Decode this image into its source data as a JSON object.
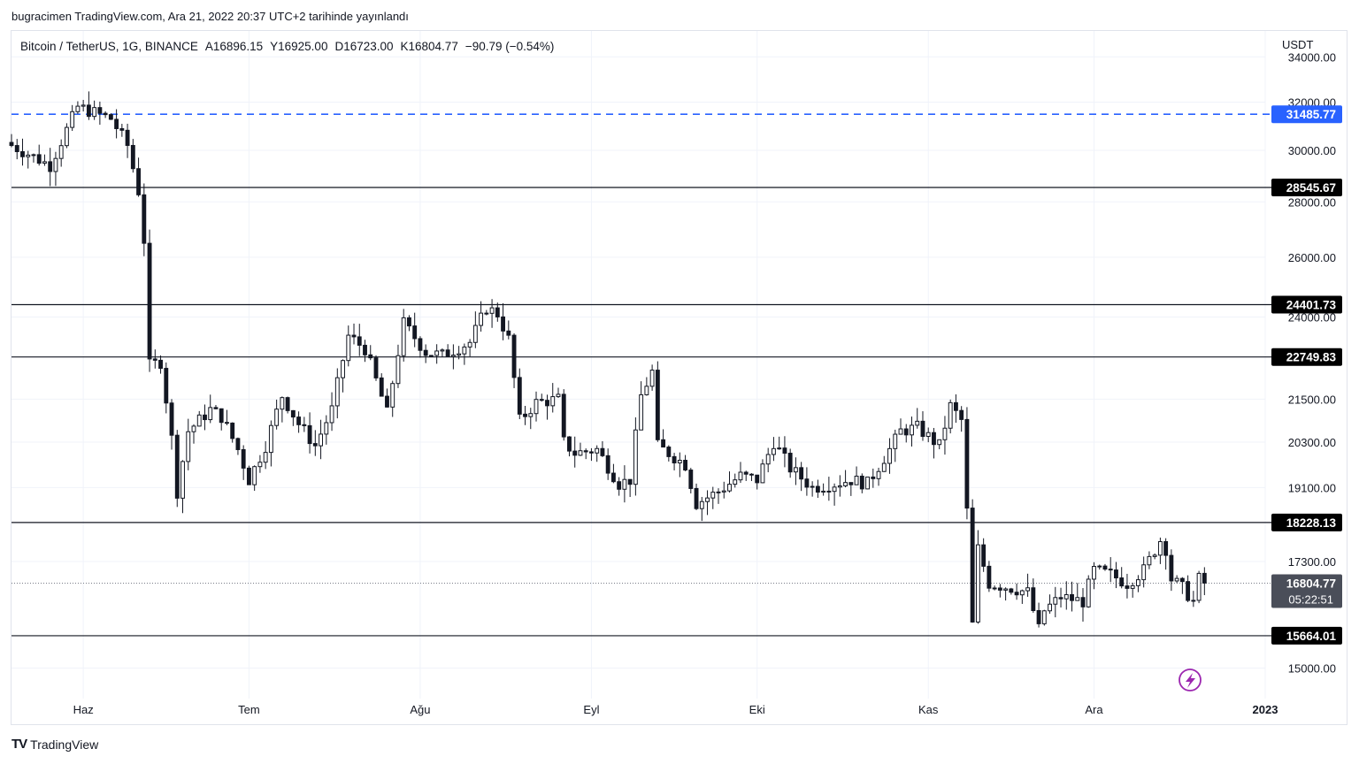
{
  "publication_line": "bugracimen TradingView.com, Ara 21, 2022 20:37 UTC+2 tarihinde yayınlandı",
  "legend": {
    "symbol": "Bitcoin / TetherUS, 1G, BINANCE",
    "open": "A16896.15",
    "high": "Y16925.00",
    "low": "D16723.00",
    "close": "K16804.77",
    "change": "−90.79 (−0.54%)"
  },
  "footer": {
    "brand": "TradingView",
    "logo": "TV"
  },
  "colors": {
    "up_candle": "#ffffff",
    "down_candle": "#131722",
    "level_line": "#131722",
    "dashed_line": "#2962ff",
    "grid": "#f0f3fa",
    "countdown_bg": "#4a4e59",
    "bolt": "#9c27b0"
  },
  "icons": {
    "alert": "lightning-bolt-icon"
  },
  "chart_data": {
    "type": "candlestick",
    "ylabel": "USDT",
    "y_scale": "log",
    "ylim": [
      14400,
      35200
    ],
    "y_ticks": [
      15000,
      17300,
      19100,
      20300,
      21500,
      24000,
      26000,
      28000,
      30000,
      32000,
      34000
    ],
    "x_tick_labels": [
      {
        "label": "Haz",
        "date": "2022-06-01"
      },
      {
        "label": "Tem",
        "date": "2022-07-01"
      },
      {
        "label": "Ağu",
        "date": "2022-08-01"
      },
      {
        "label": "Eyl",
        "date": "2022-09-01"
      },
      {
        "label": "Eki",
        "date": "2022-10-01"
      },
      {
        "label": "Kas",
        "date": "2022-11-01"
      },
      {
        "label": "Ara",
        "date": "2022-12-01"
      },
      {
        "label": "2023",
        "date": "2023-01-01"
      }
    ],
    "xlim": [
      "2022-05-19",
      "2023-01-01"
    ],
    "horizontal_levels": [
      {
        "value": 28545.67,
        "label": "28545.67",
        "style": "solid"
      },
      {
        "value": 24401.73,
        "label": "24401.73",
        "style": "solid"
      },
      {
        "value": 22749.83,
        "label": "22749.83",
        "style": "solid"
      },
      {
        "value": 18228.13,
        "label": "18228.13",
        "style": "solid"
      },
      {
        "value": 15664.01,
        "label": "15664.01",
        "style": "solid"
      }
    ],
    "dashed_level": {
      "value": 31485.77,
      "label": "31485.77"
    },
    "last_price": {
      "value": 16804.77,
      "label": "16804.77",
      "countdown": "05:22:51"
    },
    "close_path": [
      [
        "2022-05-19",
        30200
      ],
      [
        "2022-05-26",
        29400
      ],
      [
        "2022-05-31",
        31800
      ],
      [
        "2022-06-06",
        31300
      ],
      [
        "2022-06-09",
        30200
      ],
      [
        "2022-06-11",
        28400
      ],
      [
        "2022-06-12",
        26600
      ],
      [
        "2022-06-13",
        22500
      ],
      [
        "2022-06-15",
        22600
      ],
      [
        "2022-06-17",
        20400
      ],
      [
        "2022-06-18",
        19000
      ],
      [
        "2022-06-20",
        20600
      ],
      [
        "2022-06-24",
        21200
      ],
      [
        "2022-06-26",
        21000
      ],
      [
        "2022-06-29",
        20100
      ],
      [
        "2022-07-01",
        19300
      ],
      [
        "2022-07-04",
        20200
      ],
      [
        "2022-07-07",
        21600
      ],
      [
        "2022-07-10",
        20800
      ],
      [
        "2022-07-13",
        20200
      ],
      [
        "2022-07-16",
        21200
      ],
      [
        "2022-07-19",
        23400
      ],
      [
        "2022-07-22",
        23000
      ],
      [
        "2022-07-26",
        21100
      ],
      [
        "2022-07-29",
        23800
      ],
      [
        "2022-08-02",
        22900
      ],
      [
        "2022-08-05",
        22800
      ],
      [
        "2022-08-10",
        23200
      ],
      [
        "2022-08-13",
        24300
      ],
      [
        "2022-08-15",
        24100
      ],
      [
        "2022-08-17",
        23300
      ],
      [
        "2022-08-19",
        20900
      ],
      [
        "2022-08-22",
        21400
      ],
      [
        "2022-08-26",
        21500
      ],
      [
        "2022-08-27",
        20300
      ],
      [
        "2022-08-29",
        20000
      ],
      [
        "2022-09-02",
        20100
      ],
      [
        "2022-09-06",
        19200
      ],
      [
        "2022-09-08",
        19300
      ],
      [
        "2022-09-10",
        21600
      ],
      [
        "2022-09-12",
        22300
      ],
      [
        "2022-09-13",
        20200
      ],
      [
        "2022-09-18",
        19700
      ],
      [
        "2022-09-20",
        18700
      ],
      [
        "2022-09-24",
        19000
      ],
      [
        "2022-09-28",
        19400
      ],
      [
        "2022-10-01",
        19300
      ],
      [
        "2022-10-04",
        20300
      ],
      [
        "2022-10-07",
        19600
      ],
      [
        "2022-10-11",
        19100
      ],
      [
        "2022-10-15",
        19200
      ],
      [
        "2022-10-18",
        19300
      ],
      [
        "2022-10-21",
        19200
      ],
      [
        "2022-10-25",
        20100
      ],
      [
        "2022-10-27",
        20600
      ],
      [
        "2022-10-30",
        20700
      ],
      [
        "2022-11-03",
        20200
      ],
      [
        "2022-11-05",
        21300
      ],
      [
        "2022-11-07",
        20900
      ],
      [
        "2022-11-08",
        18500
      ],
      [
        "2022-11-09",
        15900
      ],
      [
        "2022-11-10",
        17600
      ],
      [
        "2022-11-12",
        16800
      ],
      [
        "2022-11-16",
        16700
      ],
      [
        "2022-11-19",
        16600
      ],
      [
        "2022-11-21",
        15800
      ],
      [
        "2022-11-22",
        16200
      ],
      [
        "2022-11-25",
        16500
      ],
      [
        "2022-11-29",
        16400
      ],
      [
        "2022-12-01",
        17100
      ],
      [
        "2022-12-04",
        17000
      ],
      [
        "2022-12-07",
        16800
      ],
      [
        "2022-12-10",
        17100
      ],
      [
        "2022-12-13",
        17800
      ],
      [
        "2022-12-14",
        17600
      ],
      [
        "2022-12-15",
        16900
      ],
      [
        "2022-12-17",
        16700
      ],
      [
        "2022-12-19",
        16400
      ],
      [
        "2022-12-20",
        16900
      ],
      [
        "2022-12-21",
        16805
      ]
    ]
  }
}
